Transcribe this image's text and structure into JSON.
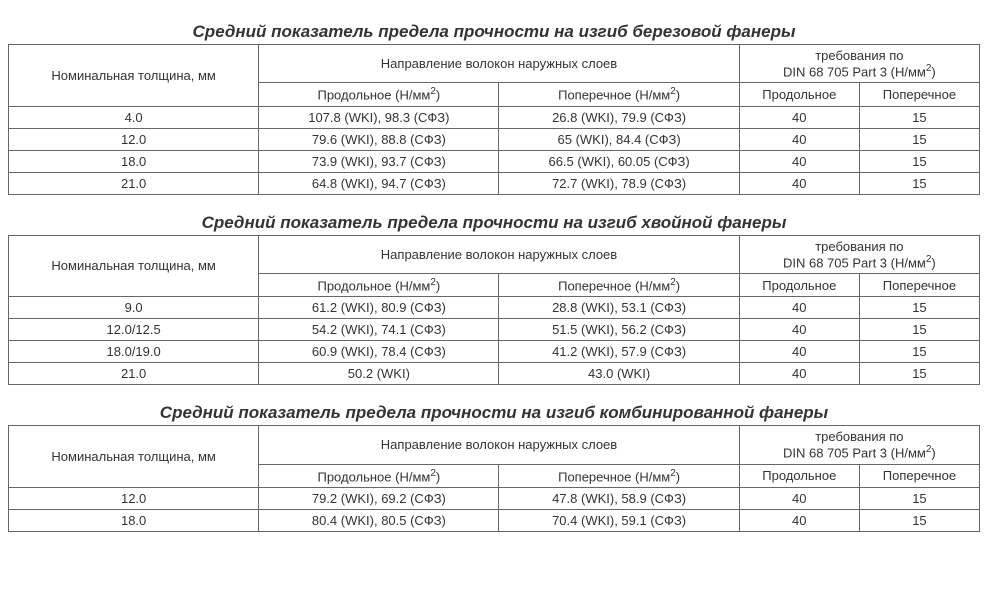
{
  "common": {
    "col_nom": "Номинальная толщина, мм",
    "col_direction": "Направление волокон наружных слоев",
    "col_req_prefix": "требования по",
    "col_req_suffix": "DIN 68 705 Part 3 (Н/мм",
    "col_req_sup": "2",
    "col_long_prefix": "Продольное (Н/мм",
    "col_trans_prefix": "Поперечное (Н/мм",
    "unit_sup": "2",
    "col_req_long": "Продольное",
    "col_req_trans": "Поперечное"
  },
  "tables": [
    {
      "title": "Средний показатель предела прочности на изгиб березовой фанеры",
      "rows": [
        {
          "nom": "4.0",
          "long": "107.8 (WKI), 98.3 (СФЗ)",
          "trans": "26.8 (WKI), 79.9 (СФЗ)",
          "req_long": "40",
          "req_trans": "15"
        },
        {
          "nom": "12.0",
          "long": "79.6 (WKI), 88.8 (СФЗ)",
          "trans": "65 (WKI), 84.4 (СФЗ)",
          "req_long": "40",
          "req_trans": "15"
        },
        {
          "nom": "18.0",
          "long": "73.9 (WKI), 93.7 (СФЗ)",
          "trans": "66.5 (WKI), 60.05 (СФЗ)",
          "req_long": "40",
          "req_trans": "15"
        },
        {
          "nom": "21.0",
          "long": "64.8 (WKI), 94.7 (СФЗ)",
          "trans": "72.7 (WKI), 78.9 (СФЗ)",
          "req_long": "40",
          "req_trans": "15"
        }
      ]
    },
    {
      "title": "Средний показатель предела прочности на изгиб хвойной фанеры",
      "rows": [
        {
          "nom": "9.0",
          "long": "61.2 (WKI), 80.9 (СФЗ)",
          "trans": "28.8 (WKI), 53.1 (СФЗ)",
          "req_long": "40",
          "req_trans": "15"
        },
        {
          "nom": "12.0/12.5",
          "long": "54.2 (WKI), 74.1 (СФЗ)",
          "trans": "51.5 (WKI), 56.2 (СФЗ)",
          "req_long": "40",
          "req_trans": "15"
        },
        {
          "nom": "18.0/19.0",
          "long": "60.9 (WKI), 78.4 (СФЗ)",
          "trans": "41.2 (WKI), 57.9 (СФЗ)",
          "req_long": "40",
          "req_trans": "15"
        },
        {
          "nom": "21.0",
          "long": "50.2 (WKI)",
          "trans": "43.0 (WKI)",
          "req_long": "40",
          "req_trans": "15"
        }
      ]
    },
    {
      "title": "Средний показатель предела прочности на изгиб комбинированной фанеры",
      "rows": [
        {
          "nom": "12.0",
          "long": "79.2 (WKI), 69.2 (СФЗ)",
          "trans": "47.8 (WKI), 58.9 (СФЗ)",
          "req_long": "40",
          "req_trans": "15"
        },
        {
          "nom": "18.0",
          "long": "80.4 (WKI), 80.5 (СФЗ)",
          "trans": "70.4 (WKI), 59.1 (СФЗ)",
          "req_long": "40",
          "req_trans": "15"
        }
      ]
    }
  ]
}
